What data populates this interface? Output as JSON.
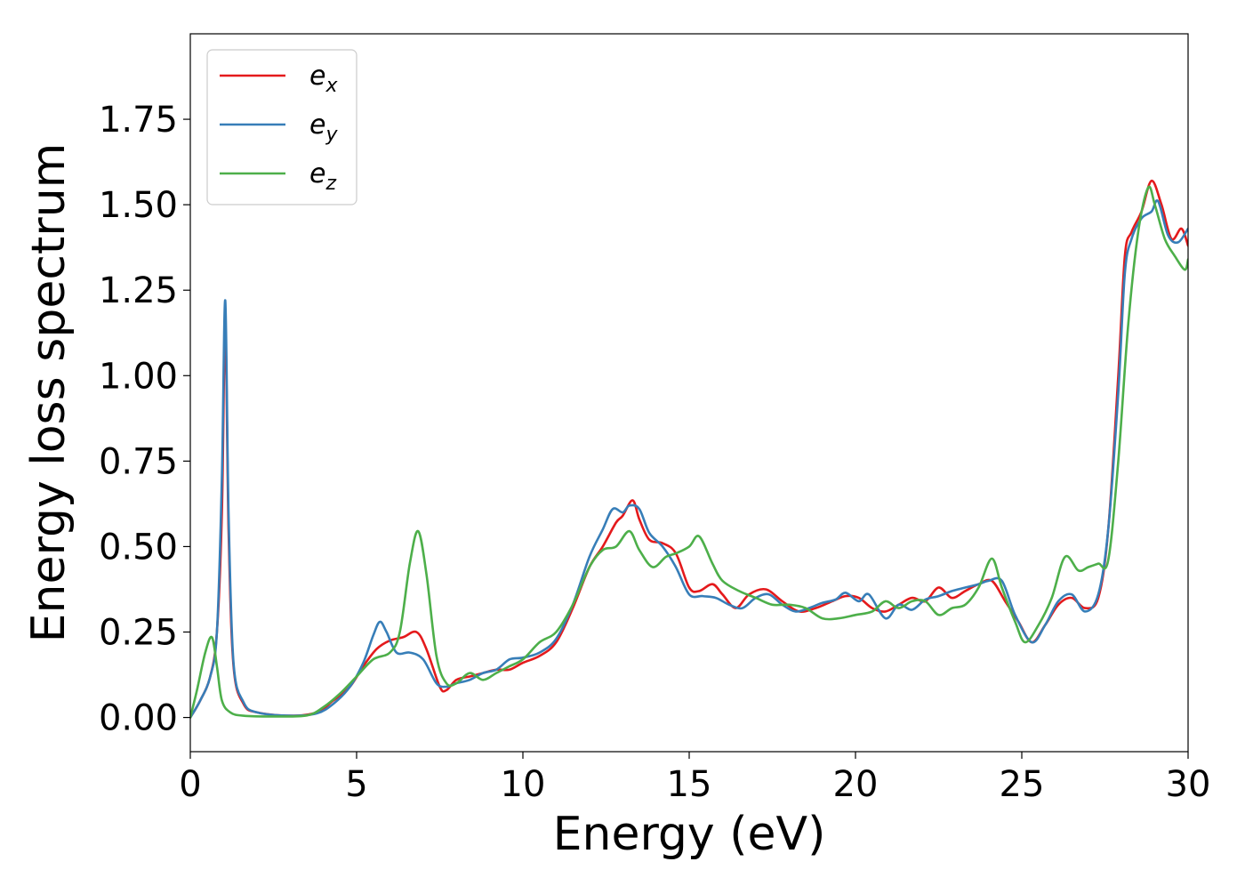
{
  "chart_data": {
    "type": "line",
    "title": "",
    "xlabel": "Energy (eV)",
    "ylabel": "Energy loss spectrum",
    "xlim": [
      0,
      30
    ],
    "ylim": [
      -0.1,
      2.0
    ],
    "xticks": [
      0,
      5,
      10,
      15,
      20,
      25,
      30
    ],
    "xtick_labels": [
      "0",
      "5",
      "10",
      "15",
      "20",
      "25",
      "30"
    ],
    "yticks": [
      0.0,
      0.25,
      0.5,
      0.75,
      1.0,
      1.25,
      1.5,
      1.75
    ],
    "ytick_labels": [
      "0.00",
      "0.25",
      "0.50",
      "0.75",
      "1.00",
      "1.25",
      "1.50",
      "1.75"
    ],
    "grid": false,
    "legend_position": "top-left",
    "series": [
      {
        "name": "e_x",
        "legend_main": "e",
        "legend_sub": "x",
        "color": "#e41a1c",
        "points": [
          [
            0,
            0
          ],
          [
            0.3,
            0.05
          ],
          [
            0.6,
            0.12
          ],
          [
            0.8,
            0.25
          ],
          [
            0.95,
            0.6
          ],
          [
            1.05,
            1.15
          ],
          [
            1.15,
            0.55
          ],
          [
            1.3,
            0.15
          ],
          [
            1.6,
            0.04
          ],
          [
            2,
            0.015
          ],
          [
            3,
            0.005
          ],
          [
            3.8,
            0.015
          ],
          [
            4.3,
            0.05
          ],
          [
            4.8,
            0.09
          ],
          [
            5.2,
            0.15
          ],
          [
            5.6,
            0.2
          ],
          [
            6.0,
            0.225
          ],
          [
            6.4,
            0.235
          ],
          [
            6.8,
            0.25
          ],
          [
            7.1,
            0.2
          ],
          [
            7.5,
            0.09
          ],
          [
            7.7,
            0.08
          ],
          [
            8.0,
            0.11
          ],
          [
            8.4,
            0.12
          ],
          [
            8.8,
            0.13
          ],
          [
            9.2,
            0.14
          ],
          [
            9.6,
            0.14
          ],
          [
            10.0,
            0.16
          ],
          [
            10.5,
            0.18
          ],
          [
            11.0,
            0.22
          ],
          [
            11.5,
            0.32
          ],
          [
            12.0,
            0.44
          ],
          [
            12.4,
            0.5
          ],
          [
            12.8,
            0.57
          ],
          [
            13.0,
            0.59
          ],
          [
            13.3,
            0.635
          ],
          [
            13.5,
            0.58
          ],
          [
            13.8,
            0.52
          ],
          [
            14.2,
            0.51
          ],
          [
            14.6,
            0.48
          ],
          [
            15.0,
            0.38
          ],
          [
            15.3,
            0.37
          ],
          [
            15.7,
            0.39
          ],
          [
            16.0,
            0.36
          ],
          [
            16.4,
            0.32
          ],
          [
            16.8,
            0.36
          ],
          [
            17.3,
            0.375
          ],
          [
            17.8,
            0.34
          ],
          [
            18.3,
            0.31
          ],
          [
            18.8,
            0.32
          ],
          [
            19.3,
            0.34
          ],
          [
            19.7,
            0.355
          ],
          [
            20.1,
            0.35
          ],
          [
            20.5,
            0.32
          ],
          [
            20.9,
            0.31
          ],
          [
            21.3,
            0.33
          ],
          [
            21.7,
            0.35
          ],
          [
            22.1,
            0.34
          ],
          [
            22.5,
            0.38
          ],
          [
            22.9,
            0.35
          ],
          [
            23.3,
            0.37
          ],
          [
            23.7,
            0.39
          ],
          [
            24.1,
            0.4
          ],
          [
            24.5,
            0.34
          ],
          [
            24.9,
            0.28
          ],
          [
            25.3,
            0.22
          ],
          [
            25.7,
            0.27
          ],
          [
            26.1,
            0.33
          ],
          [
            26.5,
            0.35
          ],
          [
            26.9,
            0.32
          ],
          [
            27.3,
            0.35
          ],
          [
            27.6,
            0.55
          ],
          [
            27.9,
            1.0
          ],
          [
            28.1,
            1.35
          ],
          [
            28.3,
            1.42
          ],
          [
            28.6,
            1.48
          ],
          [
            28.9,
            1.57
          ],
          [
            29.2,
            1.5
          ],
          [
            29.5,
            1.4
          ],
          [
            29.8,
            1.43
          ],
          [
            30.0,
            1.38
          ]
        ]
      },
      {
        "name": "e_y",
        "legend_main": "e",
        "legend_sub": "y",
        "color": "#377eb8",
        "points": [
          [
            0,
            0
          ],
          [
            0.3,
            0.05
          ],
          [
            0.6,
            0.12
          ],
          [
            0.8,
            0.25
          ],
          [
            0.95,
            0.7
          ],
          [
            1.05,
            1.22
          ],
          [
            1.15,
            0.6
          ],
          [
            1.3,
            0.16
          ],
          [
            1.6,
            0.045
          ],
          [
            2,
            0.015
          ],
          [
            3,
            0.005
          ],
          [
            3.8,
            0.012
          ],
          [
            4.3,
            0.04
          ],
          [
            4.8,
            0.09
          ],
          [
            5.2,
            0.16
          ],
          [
            5.5,
            0.24
          ],
          [
            5.7,
            0.28
          ],
          [
            5.9,
            0.25
          ],
          [
            6.2,
            0.19
          ],
          [
            6.6,
            0.19
          ],
          [
            7.0,
            0.17
          ],
          [
            7.4,
            0.1
          ],
          [
            7.7,
            0.09
          ],
          [
            8.0,
            0.1
          ],
          [
            8.4,
            0.11
          ],
          [
            8.8,
            0.13
          ],
          [
            9.2,
            0.14
          ],
          [
            9.6,
            0.17
          ],
          [
            10.0,
            0.175
          ],
          [
            10.5,
            0.19
          ],
          [
            11.0,
            0.23
          ],
          [
            11.5,
            0.33
          ],
          [
            12.0,
            0.47
          ],
          [
            12.4,
            0.55
          ],
          [
            12.7,
            0.61
          ],
          [
            13.0,
            0.6
          ],
          [
            13.2,
            0.62
          ],
          [
            13.5,
            0.61
          ],
          [
            13.8,
            0.54
          ],
          [
            14.2,
            0.5
          ],
          [
            14.6,
            0.44
          ],
          [
            15.0,
            0.36
          ],
          [
            15.4,
            0.355
          ],
          [
            15.8,
            0.35
          ],
          [
            16.2,
            0.33
          ],
          [
            16.6,
            0.32
          ],
          [
            17.0,
            0.35
          ],
          [
            17.4,
            0.36
          ],
          [
            17.8,
            0.33
          ],
          [
            18.2,
            0.31
          ],
          [
            18.6,
            0.32
          ],
          [
            19.0,
            0.335
          ],
          [
            19.4,
            0.345
          ],
          [
            19.7,
            0.365
          ],
          [
            20.1,
            0.34
          ],
          [
            20.4,
            0.36
          ],
          [
            20.9,
            0.29
          ],
          [
            21.3,
            0.33
          ],
          [
            21.7,
            0.315
          ],
          [
            22.1,
            0.345
          ],
          [
            22.5,
            0.355
          ],
          [
            22.9,
            0.37
          ],
          [
            23.3,
            0.38
          ],
          [
            23.7,
            0.39
          ],
          [
            24.0,
            0.4
          ],
          [
            24.4,
            0.4
          ],
          [
            24.8,
            0.3
          ],
          [
            25.3,
            0.22
          ],
          [
            25.7,
            0.27
          ],
          [
            26.1,
            0.34
          ],
          [
            26.5,
            0.36
          ],
          [
            26.9,
            0.31
          ],
          [
            27.3,
            0.36
          ],
          [
            27.6,
            0.55
          ],
          [
            27.9,
            0.95
          ],
          [
            28.1,
            1.3
          ],
          [
            28.3,
            1.4
          ],
          [
            28.6,
            1.46
          ],
          [
            28.9,
            1.48
          ],
          [
            29.1,
            1.51
          ],
          [
            29.4,
            1.41
          ],
          [
            29.7,
            1.39
          ],
          [
            30.0,
            1.43
          ]
        ]
      },
      {
        "name": "e_z",
        "legend_main": "e",
        "legend_sub": "z",
        "color": "#4daf4a",
        "points": [
          [
            0,
            0
          ],
          [
            0.2,
            0.08
          ],
          [
            0.45,
            0.19
          ],
          [
            0.65,
            0.235
          ],
          [
            0.8,
            0.15
          ],
          [
            0.95,
            0.05
          ],
          [
            1.2,
            0.015
          ],
          [
            1.6,
            0.005
          ],
          [
            2.5,
            0.003
          ],
          [
            3.5,
            0.006
          ],
          [
            4.0,
            0.03
          ],
          [
            4.5,
            0.07
          ],
          [
            5.0,
            0.12
          ],
          [
            5.5,
            0.17
          ],
          [
            6.0,
            0.19
          ],
          [
            6.3,
            0.25
          ],
          [
            6.6,
            0.45
          ],
          [
            6.85,
            0.545
          ],
          [
            7.1,
            0.42
          ],
          [
            7.4,
            0.18
          ],
          [
            7.7,
            0.1
          ],
          [
            8.0,
            0.1
          ],
          [
            8.4,
            0.13
          ],
          [
            8.8,
            0.11
          ],
          [
            9.2,
            0.13
          ],
          [
            9.6,
            0.15
          ],
          [
            10.0,
            0.17
          ],
          [
            10.5,
            0.22
          ],
          [
            11.0,
            0.25
          ],
          [
            11.5,
            0.33
          ],
          [
            12.0,
            0.44
          ],
          [
            12.4,
            0.49
          ],
          [
            12.8,
            0.5
          ],
          [
            13.2,
            0.545
          ],
          [
            13.5,
            0.49
          ],
          [
            13.9,
            0.44
          ],
          [
            14.3,
            0.47
          ],
          [
            14.6,
            0.48
          ],
          [
            15.0,
            0.5
          ],
          [
            15.3,
            0.53
          ],
          [
            15.7,
            0.45
          ],
          [
            16.0,
            0.4
          ],
          [
            16.5,
            0.37
          ],
          [
            17.0,
            0.35
          ],
          [
            17.5,
            0.33
          ],
          [
            18.0,
            0.33
          ],
          [
            18.5,
            0.32
          ],
          [
            19.0,
            0.29
          ],
          [
            19.5,
            0.29
          ],
          [
            20.0,
            0.3
          ],
          [
            20.5,
            0.31
          ],
          [
            20.9,
            0.34
          ],
          [
            21.3,
            0.32
          ],
          [
            21.7,
            0.34
          ],
          [
            22.1,
            0.34
          ],
          [
            22.5,
            0.3
          ],
          [
            22.9,
            0.32
          ],
          [
            23.3,
            0.33
          ],
          [
            23.7,
            0.38
          ],
          [
            24.1,
            0.465
          ],
          [
            24.4,
            0.38
          ],
          [
            24.8,
            0.28
          ],
          [
            25.1,
            0.22
          ],
          [
            25.5,
            0.27
          ],
          [
            25.9,
            0.35
          ],
          [
            26.3,
            0.47
          ],
          [
            26.7,
            0.43
          ],
          [
            27.0,
            0.44
          ],
          [
            27.3,
            0.45
          ],
          [
            27.6,
            0.46
          ],
          [
            27.9,
            0.75
          ],
          [
            28.2,
            1.15
          ],
          [
            28.5,
            1.42
          ],
          [
            28.8,
            1.55
          ],
          [
            29.0,
            1.5
          ],
          [
            29.3,
            1.4
          ],
          [
            29.6,
            1.35
          ],
          [
            29.9,
            1.31
          ],
          [
            30.0,
            1.34
          ]
        ]
      }
    ]
  }
}
